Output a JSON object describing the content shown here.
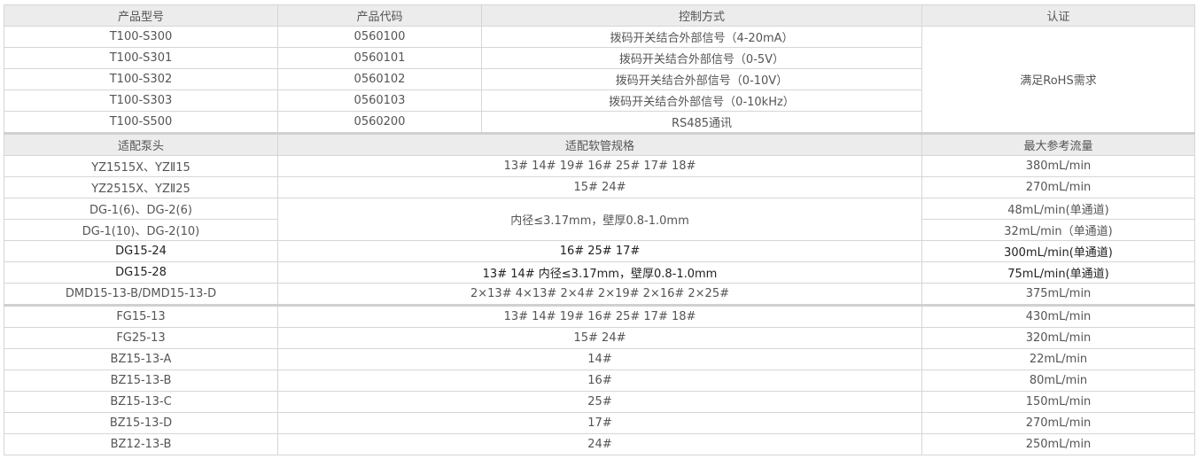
{
  "products": {
    "headers": [
      "产品型号",
      "产品代码",
      "控制方式",
      "认证"
    ],
    "rows": [
      [
        "T100-S300",
        "0560100",
        "拨码开关结合外部信号（4-20mA）"
      ],
      [
        "T100-S301",
        "0560101",
        "拨码开关结合外部信号（0-5V）"
      ],
      [
        "T100-S302",
        "0560102",
        "拨码开关结合外部信号（0-10V）"
      ],
      [
        "T100-S303",
        "0560103",
        "拨码开关结合外部信号（0-10kHz）"
      ],
      [
        "T100-S500",
        "0560200",
        "RS485通讯"
      ]
    ],
    "certification": "满足RoHS需求"
  },
  "pumps": {
    "headers": [
      "适配泵头",
      "适配软管规格",
      "最大参考流量"
    ],
    "rows": [
      [
        "YZ1515X、YZⅡ15",
        "13# 14# 19# 16# 25# 17# 18#",
        "380mL/min"
      ],
      [
        "YZ2515X、YZⅡ25",
        "15# 24#",
        "270mL/min"
      ],
      [
        "DG-1(6)、DG-2(6)",
        "内径≤3.17mm，壁厚0.8-1.0mm",
        "48mL/min(单通道)"
      ],
      [
        "DG-1(10)、DG-2(10)",
        "",
        "32mL/min（单通道)"
      ],
      [
        "DG15-24",
        "16# 25# 17#",
        "300mL/min(单通道)"
      ],
      [
        "DG15-28",
        "13# 14# 内径≤3.17mm，壁厚0.8-1.0mm",
        "75mL/min(单通道)"
      ],
      [
        "DMD15-13-B/DMD15-13-D",
        "2×13# 4×13# 2×4# 2×19# 2×16# 2×25#",
        "375mL/min"
      ],
      [
        "FG15-13",
        "13# 14# 19# 16# 25# 17# 18#",
        "430mL/min"
      ],
      [
        "FG25-13",
        "15# 24#",
        "320mL/min"
      ],
      [
        "BZ15-13-A",
        "14#",
        "22mL/min"
      ],
      [
        "BZ15-13-B",
        "16#",
        "80mL/min"
      ],
      [
        "BZ15-13-C",
        "25#",
        "150mL/min"
      ],
      [
        "BZ15-13-D",
        "17#",
        "270mL/min"
      ],
      [
        "BZ12-13-B",
        "24#",
        "250mL/min"
      ]
    ]
  }
}
